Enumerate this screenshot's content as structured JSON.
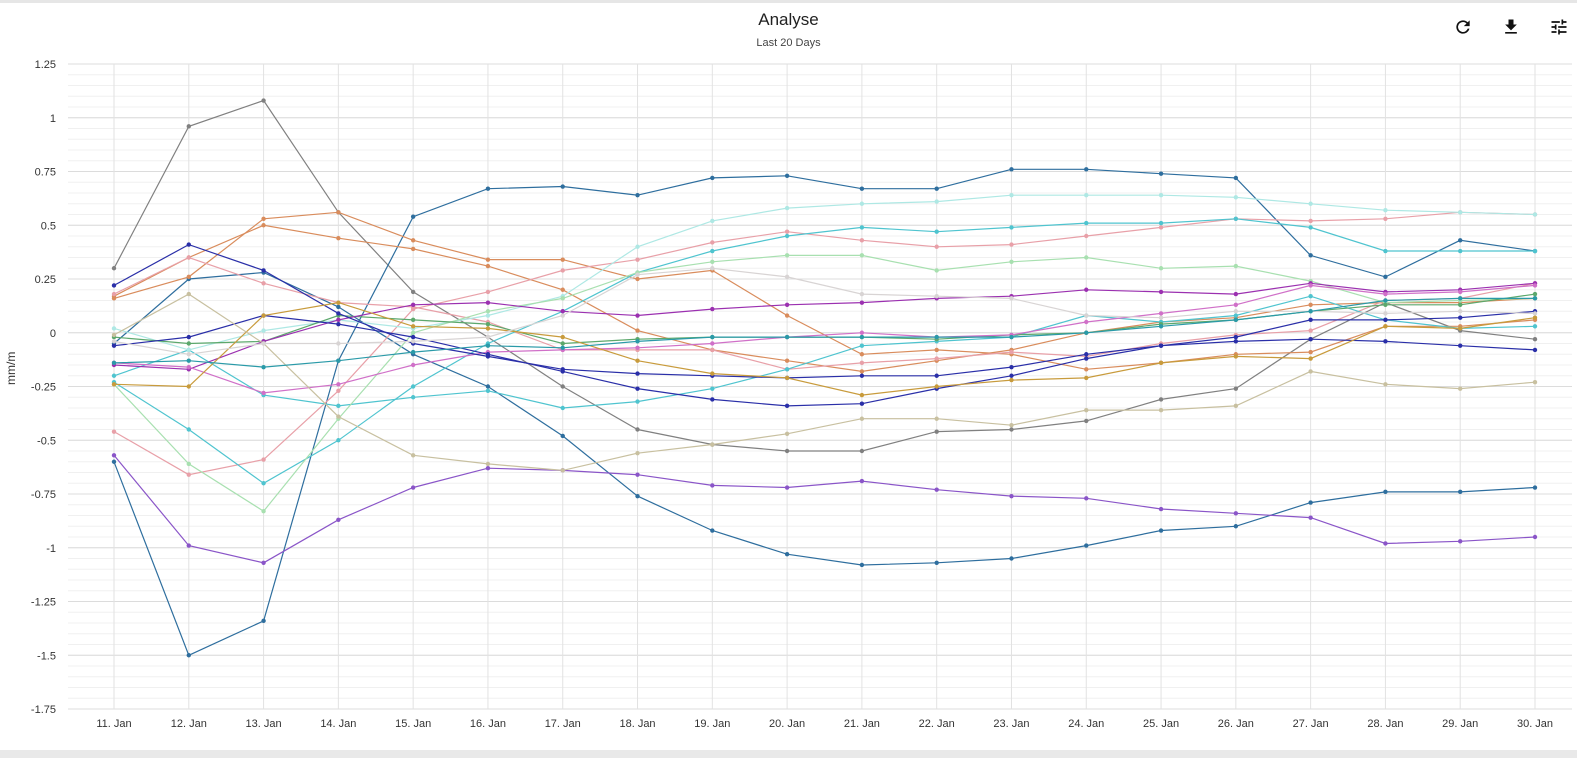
{
  "header": {
    "title": "Analyse",
    "subtitle": "Last 20 Days"
  },
  "toolbar": {
    "refresh_icon": "refresh-icon",
    "download_icon": "download-icon",
    "settings_icon": "sliders-icon"
  },
  "chart_data": {
    "type": "line",
    "title": "Analyse",
    "subtitle": "Last 20 Days",
    "xlabel": "",
    "ylabel": "mm/m",
    "categories": [
      "11. Jan",
      "12. Jan",
      "13. Jan",
      "14. Jan",
      "15. Jan",
      "16. Jan",
      "17. Jan",
      "18. Jan",
      "19. Jan",
      "20. Jan",
      "21. Jan",
      "22. Jan",
      "23. Jan",
      "24. Jan",
      "25. Jan",
      "26. Jan",
      "27. Jan",
      "28. Jan",
      "29. Jan",
      "30. Jan"
    ],
    "ylim": [
      -1.75,
      1.25
    ],
    "yticks": [
      1.25,
      1,
      0.75,
      0.5,
      0.25,
      0,
      -0.25,
      -0.5,
      -0.75,
      -1,
      -1.25,
      -1.5,
      -1.75
    ],
    "ytick_labels": [
      "1.25",
      "1",
      "0.75",
      "0.5",
      "0.25",
      "0",
      "-0.25",
      "-0.5",
      "-0.75",
      "-1",
      "-1.25",
      "-1.5",
      "-1.75"
    ],
    "grid": true,
    "legend": "none",
    "series": [
      {
        "color": "#808080",
        "values": [
          0.3,
          0.96,
          1.08,
          0.56,
          0.19,
          -0.02,
          -0.25,
          -0.45,
          -0.52,
          -0.55,
          -0.55,
          -0.46,
          -0.45,
          -0.41,
          -0.31,
          -0.26,
          -0.03,
          0.14,
          0.01,
          -0.03
        ]
      },
      {
        "color": "#2e6e9e",
        "values": [
          -0.6,
          -1.5,
          -1.34,
          -0.13,
          0.54,
          0.67,
          0.68,
          0.64,
          0.72,
          0.73,
          0.67,
          0.67,
          0.76,
          0.76,
          0.74,
          0.72,
          0.36,
          0.26,
          0.43,
          0.38
        ]
      },
      {
        "color": "#2e6e9e",
        "values": [
          -0.05,
          0.25,
          0.28,
          0.12,
          -0.1,
          -0.25,
          -0.48,
          -0.76,
          -0.92,
          -1.03,
          -1.08,
          -1.07,
          -1.05,
          -0.99,
          -0.92,
          -0.9,
          -0.79,
          -0.74,
          -0.74,
          -0.72
        ]
      },
      {
        "color": "#d98c5c",
        "values": [
          0.17,
          0.35,
          0.5,
          0.44,
          0.39,
          0.31,
          0.2,
          0.01,
          -0.08,
          -0.13,
          -0.18,
          -0.13,
          -0.08,
          0.0,
          0.05,
          0.07,
          0.13,
          0.14,
          0.14,
          0.16
        ]
      },
      {
        "color": "#d98c5c",
        "values": [
          0.16,
          0.26,
          0.53,
          0.56,
          0.43,
          0.34,
          0.34,
          0.25,
          0.29,
          0.08,
          -0.1,
          -0.08,
          -0.1,
          -0.17,
          -0.14,
          -0.1,
          -0.09,
          0.03,
          0.03,
          0.06
        ]
      },
      {
        "color": "#e8a0a8",
        "values": [
          -0.46,
          -0.66,
          -0.59,
          -0.27,
          0.11,
          0.19,
          0.29,
          0.34,
          0.42,
          0.47,
          0.43,
          0.4,
          0.41,
          0.45,
          0.49,
          0.53,
          0.52,
          0.53,
          0.56,
          0.55
        ]
      },
      {
        "color": "#e8a0a8",
        "values": [
          0.18,
          0.35,
          0.23,
          0.14,
          0.12,
          0.05,
          -0.08,
          -0.08,
          -0.08,
          -0.17,
          -0.14,
          -0.12,
          -0.09,
          -0.11,
          -0.05,
          -0.01,
          0.01,
          0.15,
          0.16,
          0.23
        ]
      },
      {
        "color": "#4fc4cf",
        "values": [
          -0.23,
          -0.45,
          -0.7,
          -0.5,
          -0.25,
          -0.05,
          0.1,
          0.28,
          0.38,
          0.45,
          0.49,
          0.47,
          0.49,
          0.51,
          0.51,
          0.53,
          0.49,
          0.38,
          0.38,
          0.38
        ]
      },
      {
        "color": "#4fc4cf",
        "values": [
          -0.2,
          -0.08,
          -0.29,
          -0.34,
          -0.3,
          -0.27,
          -0.35,
          -0.32,
          -0.26,
          -0.17,
          -0.06,
          -0.04,
          -0.02,
          0.08,
          0.05,
          0.08,
          0.17,
          0.06,
          0.02,
          0.03
        ]
      },
      {
        "color": "#aee8e4",
        "values": [
          0.02,
          -0.08,
          0.01,
          0.06,
          0.02,
          0.08,
          0.17,
          0.4,
          0.52,
          0.58,
          0.6,
          0.61,
          0.64,
          0.64,
          0.64,
          0.63,
          0.6,
          0.57,
          0.56,
          0.55
        ]
      },
      {
        "color": "#a8e0b0",
        "values": [
          -0.24,
          -0.61,
          -0.83,
          -0.4,
          0.0,
          0.1,
          0.16,
          0.28,
          0.33,
          0.36,
          0.36,
          0.29,
          0.33,
          0.35,
          0.3,
          0.31,
          0.24,
          0.14,
          0.15,
          0.16
        ]
      },
      {
        "color": "#5ca86c",
        "values": [
          -0.02,
          -0.05,
          -0.04,
          0.08,
          0.06,
          0.04,
          -0.05,
          -0.03,
          -0.02,
          -0.02,
          -0.02,
          -0.03,
          -0.01,
          0.0,
          0.04,
          0.06,
          0.1,
          0.13,
          0.13,
          0.18
        ]
      },
      {
        "color": "#9b30b0",
        "values": [
          -0.15,
          -0.17,
          -0.04,
          0.06,
          0.13,
          0.14,
          0.1,
          0.08,
          0.11,
          0.13,
          0.14,
          0.16,
          0.17,
          0.2,
          0.19,
          0.18,
          0.23,
          0.19,
          0.2,
          0.23
        ]
      },
      {
        "color": "#d070c8",
        "values": [
          -0.14,
          -0.16,
          -0.28,
          -0.24,
          -0.15,
          -0.09,
          -0.08,
          -0.07,
          -0.05,
          -0.02,
          0.0,
          -0.02,
          -0.01,
          0.05,
          0.09,
          0.13,
          0.22,
          0.18,
          0.19,
          0.22
        ]
      },
      {
        "color": "#8a55c8",
        "values": [
          -0.57,
          -0.99,
          -1.07,
          -0.87,
          -0.72,
          -0.63,
          -0.64,
          -0.66,
          -0.71,
          -0.72,
          -0.69,
          -0.73,
          -0.76,
          -0.77,
          -0.82,
          -0.84,
          -0.86,
          -0.98,
          -0.97,
          -0.95
        ]
      },
      {
        "color": "#2a2fa8",
        "values": [
          0.22,
          0.41,
          0.29,
          0.09,
          -0.05,
          -0.11,
          -0.17,
          -0.19,
          -0.2,
          -0.21,
          -0.2,
          -0.2,
          -0.16,
          -0.1,
          -0.06,
          -0.04,
          -0.03,
          -0.04,
          -0.06,
          -0.08
        ]
      },
      {
        "color": "#2a2fa8",
        "values": [
          -0.06,
          -0.02,
          0.08,
          0.04,
          -0.02,
          -0.1,
          -0.18,
          -0.26,
          -0.31,
          -0.34,
          -0.33,
          -0.26,
          -0.2,
          -0.12,
          -0.06,
          -0.02,
          0.06,
          0.06,
          0.07,
          0.1
        ]
      },
      {
        "color": "#c89b3c",
        "values": [
          -0.24,
          -0.25,
          0.08,
          0.14,
          0.03,
          0.02,
          -0.02,
          -0.13,
          -0.19,
          -0.21,
          -0.29,
          -0.25,
          -0.22,
          -0.21,
          -0.14,
          -0.11,
          -0.12,
          0.03,
          0.02,
          0.07
        ]
      },
      {
        "color": "#c8c0a0",
        "values": [
          -0.01,
          0.18,
          -0.05,
          -0.39,
          -0.57,
          -0.61,
          -0.64,
          -0.56,
          -0.52,
          -0.47,
          -0.4,
          -0.4,
          -0.43,
          -0.36,
          -0.36,
          -0.34,
          -0.18,
          -0.24,
          -0.26,
          -0.23
        ]
      },
      {
        "color": "#d8d4d4",
        "values": [
          -0.04,
          -0.1,
          -0.05,
          -0.05,
          -0.04,
          -0.02,
          0.08,
          0.27,
          0.3,
          0.26,
          0.18,
          0.17,
          0.16,
          0.08,
          0.07,
          0.1,
          0.1,
          0.09,
          0.1,
          0.09
        ]
      },
      {
        "color": "#2a9aa8",
        "values": [
          -0.14,
          -0.13,
          -0.16,
          -0.13,
          -0.09,
          -0.06,
          -0.07,
          -0.04,
          -0.02,
          -0.02,
          -0.02,
          -0.02,
          -0.02,
          0.0,
          0.03,
          0.06,
          0.1,
          0.15,
          0.16,
          0.16
        ]
      }
    ]
  }
}
